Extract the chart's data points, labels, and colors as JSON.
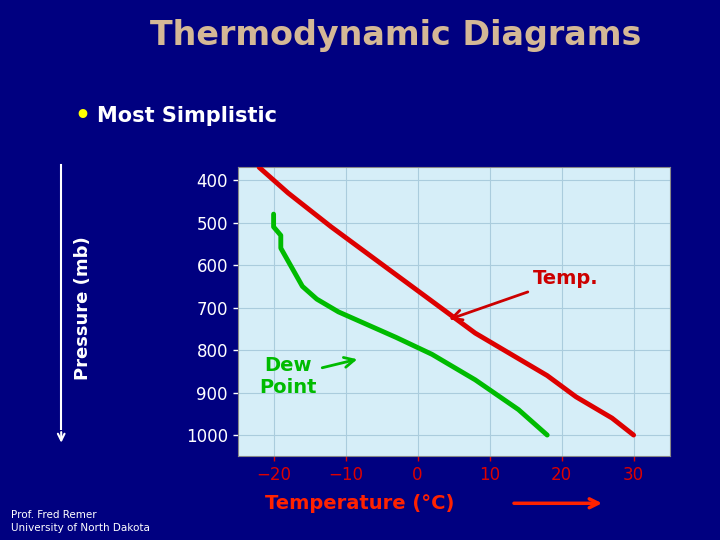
{
  "title": "Thermodynamic Diagrams",
  "bullet": "• Most Simplistic",
  "bullet_dot_color": "#ffff00",
  "bg_color": "#000080",
  "plot_bg_color": "#d6eef8",
  "title_color": "#d4b896",
  "bullet_color": "#ffffff",
  "ylabel": "Pressure (mb)",
  "xlabel": "Temperature (°C)",
  "ylabel_color": "#ffffff",
  "xlabel_color": "#ff2200",
  "pressure_levels": [
    400,
    500,
    600,
    700,
    800,
    900,
    1000
  ],
  "xlim": [
    -25,
    35
  ],
  "ylim": [
    1050,
    370
  ],
  "temp_pressure": [
    370,
    400,
    430,
    470,
    510,
    560,
    610,
    660,
    710,
    760,
    810,
    860,
    910,
    960,
    1000
  ],
  "temp_values": [
    -22,
    -20,
    -18,
    -15,
    -12,
    -8,
    -4,
    0,
    4,
    8,
    13,
    18,
    22,
    27,
    30
  ],
  "dew_pressure": [
    480,
    510,
    530,
    560,
    590,
    620,
    650,
    680,
    710,
    740,
    770,
    810,
    870,
    940,
    1000
  ],
  "dew_values": [
    -20,
    -20,
    -19,
    -19,
    -18,
    -17,
    -16,
    -14,
    -11,
    -7,
    -3,
    2,
    8,
    14,
    18
  ],
  "temp_color": "#dd0000",
  "dew_color": "#00bb00",
  "temp_label": "Temp.",
  "dew_label": "Dew\nPoint",
  "temp_label_color": "#cc0000",
  "dew_label_color": "#00bb00",
  "footer_line1": "Prof. Fred Remer",
  "footer_line2": "University of North Dakota",
  "footer_color": "#ffffff",
  "grid_color": "#aaccdd",
  "tick_color": "#dd0000",
  "ytick_color": "#ffffff",
  "xtick_color": "#dd0000"
}
